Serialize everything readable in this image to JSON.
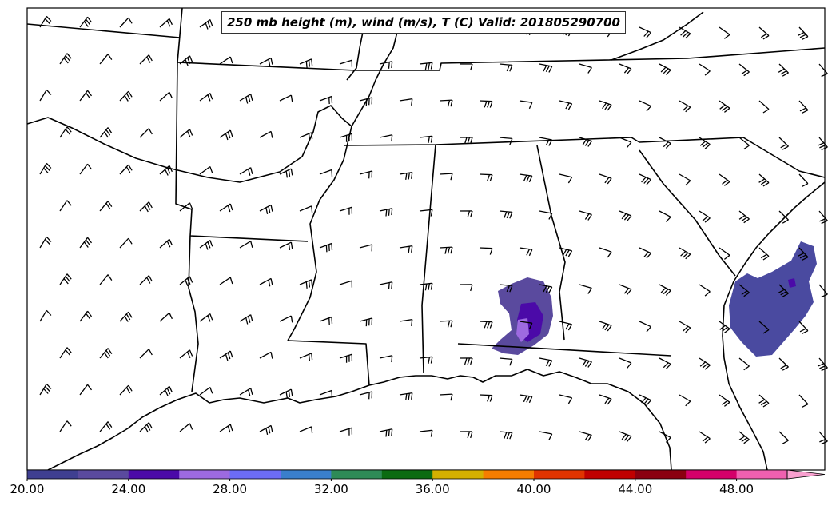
{
  "map": {
    "title": "250 mb height (m), wind (m/s), T (C) Valid: 201805290700"
  },
  "colorbar": {
    "ticks": [
      "20.00",
      "24.00",
      "28.00",
      "32.00",
      "36.00",
      "40.00",
      "44.00",
      "48.00"
    ],
    "min": 20,
    "max": 51.5,
    "step": 2,
    "extend": "max",
    "colors": [
      "#3f3f91",
      "#5a4a9e",
      "#4b0aa8",
      "#9d6ae0",
      "#6c6cf5",
      "#3a7fcc",
      "#2e8b57",
      "#0b6b12",
      "#d4b000",
      "#f57d00",
      "#e03400",
      "#c00000",
      "#8b0010",
      "#d4006a",
      "#f060b0",
      "#f8a0cf"
    ]
  }
}
